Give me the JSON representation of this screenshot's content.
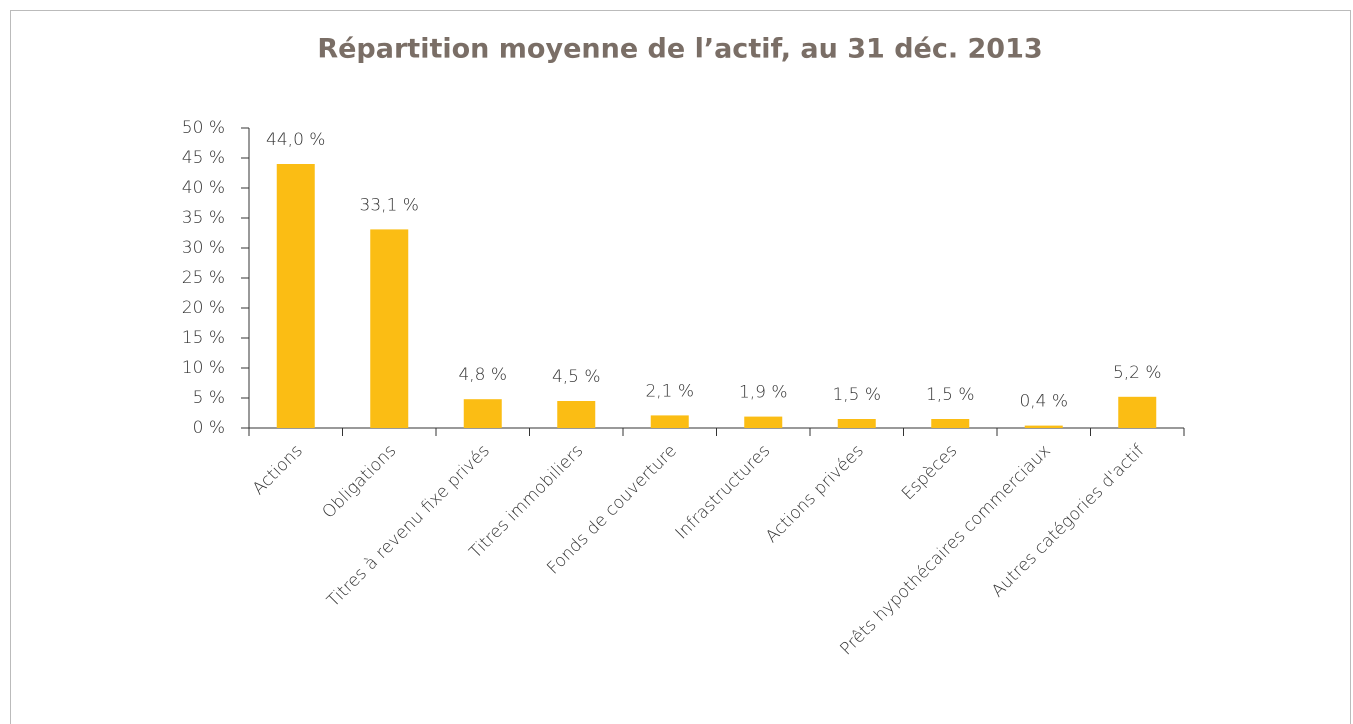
{
  "chart_data": {
    "type": "bar",
    "title": "Répartition moyenne de l’actif, au 31 déc. 2013",
    "categories": [
      "Actions",
      "Obligations",
      "Titres à revenu fixe privés",
      "Titres immobiliers",
      "Fonds de couverture",
      "Infrastructures",
      "Actions privées",
      "Espèces",
      "Prêts hypothécaires commerciaux",
      "Autres catégories d'actif"
    ],
    "values": [
      44.0,
      33.1,
      4.8,
      4.5,
      2.1,
      1.9,
      1.5,
      1.5,
      0.4,
      5.2
    ],
    "value_labels": [
      "44,0 %",
      "33,1 %",
      "4,8 %",
      "4,5 %",
      "2,1 %",
      "1,9 %",
      "1,5 %",
      "1,5 %",
      "0,4 %",
      "5,2 %"
    ],
    "color": "#fbbd14",
    "ylim": [
      0,
      50
    ],
    "yticks": [
      {
        "value": 0,
        "label": "0 %"
      },
      {
        "value": 5,
        "label": "5 %"
      },
      {
        "value": 10,
        "label": "10 %"
      },
      {
        "value": 15,
        "label": "15 %"
      },
      {
        "value": 20,
        "label": "20 %"
      },
      {
        "value": 25,
        "label": "25 %"
      },
      {
        "value": 30,
        "label": "30 %"
      },
      {
        "value": 35,
        "label": "35 %"
      },
      {
        "value": 40,
        "label": "40 %"
      },
      {
        "value": 45,
        "label": "45 %"
      },
      {
        "value": 50,
        "label": "50 %"
      }
    ],
    "grid": false
  }
}
